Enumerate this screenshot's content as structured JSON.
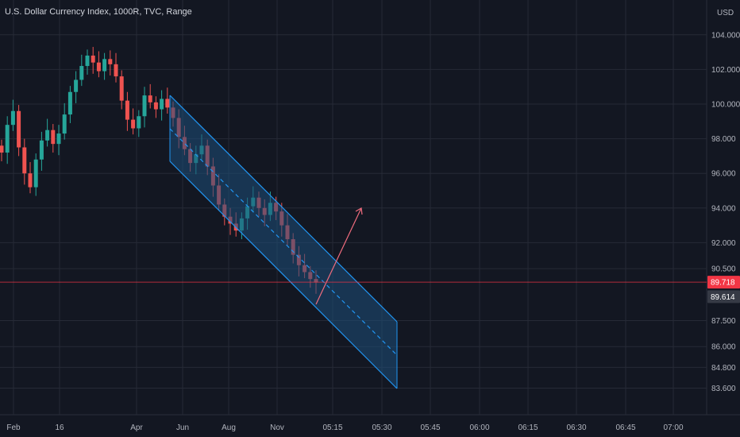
{
  "chart_data": {
    "type": "candlestick",
    "title": "U.S. Dollar Currency Index, 1000R, TVC, Range",
    "currency": "USD",
    "y_axis": {
      "ticks": [
        "104.000",
        "102.000",
        "100.000",
        "98.000",
        "96.000",
        "94.000",
        "92.000",
        "90.500",
        "87.500",
        "86.000",
        "84.800",
        "83.600"
      ],
      "tick_values": [
        104.0,
        102.0,
        100.0,
        98.0,
        96.0,
        94.0,
        92.0,
        90.5,
        87.5,
        86.0,
        84.8,
        83.6
      ]
    },
    "x_axis": {
      "ticks": [
        "Feb",
        "16",
        "Apr",
        "Jun",
        "Aug",
        "Nov",
        "05:15",
        "05:30",
        "05:45",
        "06:00",
        "06:15",
        "06:30",
        "06:45",
        "07:00"
      ]
    },
    "price_labels": [
      {
        "value": "89.718",
        "color": "#f23645"
      },
      {
        "value": "89.614",
        "color": "#ffffff"
      }
    ],
    "price_series": [
      97.2,
      98.8,
      99.6,
      97.5,
      96.0,
      95.2,
      96.8,
      97.9,
      98.5,
      97.7,
      98.3,
      99.4,
      100.7,
      101.4,
      102.2,
      102.8,
      102.4,
      101.9,
      102.6,
      102.3,
      101.6,
      100.2,
      99.1,
      98.6,
      99.3,
      100.5,
      100.1,
      99.7,
      100.3,
      99.8,
      99.2,
      98.1,
      97.4,
      96.6,
      97.1,
      97.6,
      96.4,
      95.3,
      94.2,
      93.5,
      93.1,
      92.7,
      93.4,
      94.1,
      94.6,
      94.0,
      93.6,
      94.3,
      93.8,
      93.0,
      92.2,
      91.3,
      90.7,
      90.3,
      89.9,
      89.7
    ],
    "drawings": {
      "channel": "regression-channel-descending",
      "arrow": "projection-arrow-up",
      "colors": {
        "channel_fill": "#1e4f7a",
        "channel_line": "#2196f3",
        "arrow": "#f06c7e",
        "up_candle": "#26a69a",
        "down_candle": "#ef5350"
      }
    }
  }
}
